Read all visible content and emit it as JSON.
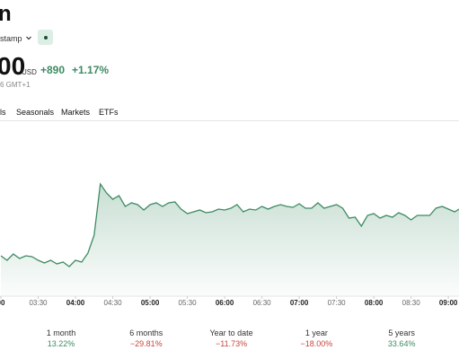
{
  "header": {
    "title": "n",
    "exchange": "stamp",
    "price": "00",
    "currency": "USD",
    "change": "+890",
    "change_pct": "+1.17%",
    "timestamp": "6 GMT+1"
  },
  "tabs": [
    "ls",
    "Seasonals",
    "Markets",
    "ETFs"
  ],
  "chart_data": {
    "type": "area",
    "color": "#3d8b63",
    "x": [
      0,
      5,
      10,
      15,
      20,
      25,
      30,
      35,
      40,
      45,
      50,
      55,
      60,
      65,
      70,
      75,
      80,
      85,
      90,
      95,
      100,
      105,
      110,
      115,
      120,
      125,
      130,
      135,
      140,
      145,
      150,
      155,
      160,
      165,
      170,
      175,
      180,
      185,
      190,
      195,
      200,
      205,
      210,
      215,
      220,
      225,
      230,
      235,
      240,
      245,
      250,
      255,
      260,
      265,
      270,
      275,
      280,
      285,
      290,
      295,
      300,
      305,
      310,
      315,
      320,
      325,
      330,
      335,
      340,
      345,
      350,
      355,
      360,
      365,
      370
    ],
    "values": [
      45,
      40,
      47,
      42,
      45,
      44,
      40,
      37,
      40,
      36,
      38,
      33,
      40,
      38,
      48,
      68,
      125,
      115,
      108,
      112,
      100,
      104,
      102,
      96,
      102,
      104,
      100,
      104,
      105,
      97,
      92,
      94,
      96,
      93,
      94,
      97,
      96,
      98,
      102,
      94,
      97,
      96,
      100,
      97,
      100,
      102,
      100,
      99,
      103,
      98,
      98,
      104,
      98,
      100,
      102,
      98,
      87,
      88,
      78,
      90,
      92,
      87,
      90,
      88,
      93,
      90,
      85,
      90,
      90,
      90,
      98,
      100,
      97,
      94,
      98
    ],
    "xlim": [
      0,
      370
    ],
    "ylim": [
      0,
      200
    ],
    "xticks": [
      {
        "value": 0,
        "label": "00"
      },
      {
        "value": 30,
        "label": "03:30"
      },
      {
        "value": 60,
        "label": "04:00"
      },
      {
        "value": 90,
        "label": "04:30"
      },
      {
        "value": 120,
        "label": "05:00"
      },
      {
        "value": 150,
        "label": "05:30"
      },
      {
        "value": 180,
        "label": "06:00"
      },
      {
        "value": 210,
        "label": "06:30"
      },
      {
        "value": 240,
        "label": "07:00"
      },
      {
        "value": 270,
        "label": "07:30"
      },
      {
        "value": 300,
        "label": "08:00"
      },
      {
        "value": 330,
        "label": "08:30"
      },
      {
        "value": 360,
        "label": "09:00"
      }
    ]
  },
  "performance": [
    {
      "label": "1 month",
      "value": "13.22%"
    },
    {
      "label": "6 months",
      "value": "−29.81%"
    },
    {
      "label": "Year to date",
      "value": "−11.73%"
    },
    {
      "label": "1 year",
      "value": "−18.00%"
    },
    {
      "label": "5 years",
      "value": "33.64%"
    }
  ]
}
